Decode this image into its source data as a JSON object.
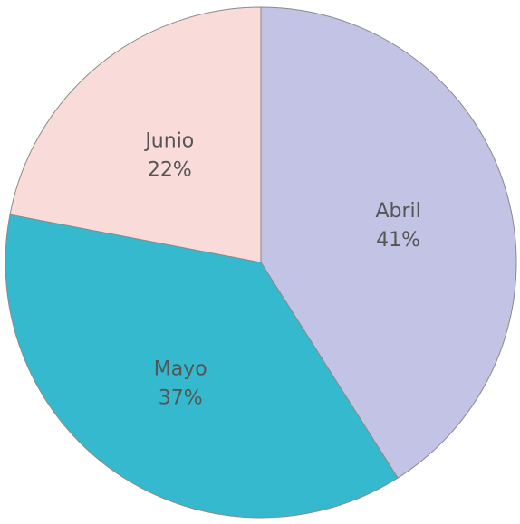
{
  "chart_data": {
    "type": "pie",
    "slices": [
      {
        "label": "Abril",
        "percent_label": "41%",
        "value": 41,
        "color": "#c3c3e6"
      },
      {
        "label": "Mayo",
        "percent_label": "37%",
        "value": 37,
        "color": "#34b9cf"
      },
      {
        "label": "Junio",
        "percent_label": "22%",
        "value": 22,
        "color": "#f9dcd9"
      }
    ],
    "start_angle_deg": -90,
    "direction": "clockwise",
    "legend": "none",
    "labels_inside": true
  }
}
